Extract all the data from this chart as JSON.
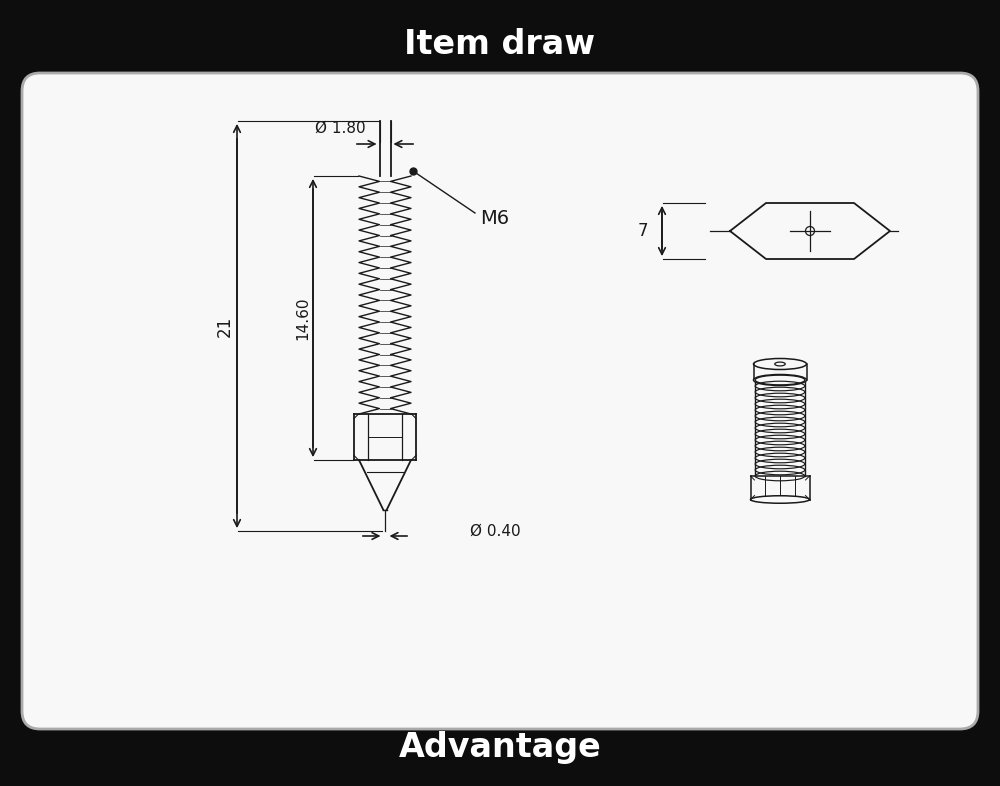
{
  "title": "Item draw",
  "subtitle": "Advantage",
  "bg_color": "#0d0d0d",
  "white_box_color": "#f8f8f8",
  "line_color": "#1a1a1a",
  "title_color": "#ffffff",
  "dim_phi_1_80": "Ø 1.80",
  "dim_14_60": "14.60",
  "dim_21": "21",
  "dim_M6": "M6",
  "dim_phi_0_40": "Ø 0.40",
  "dim_7": "7"
}
